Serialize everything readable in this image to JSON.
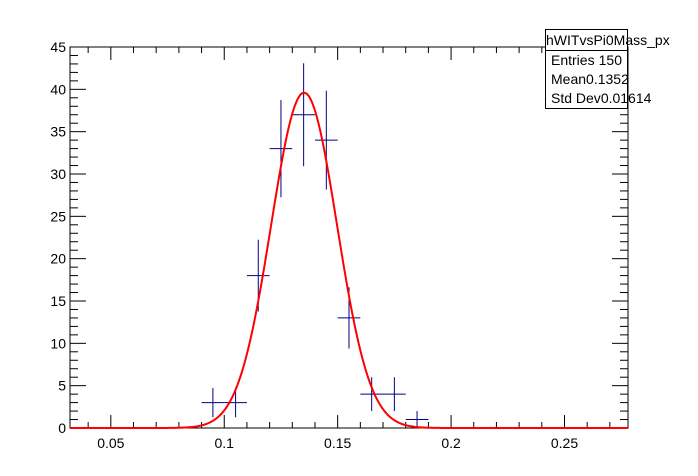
{
  "colors": {
    "data_points": "#000080",
    "fit_curve": "#ff0000",
    "axes": "#000000",
    "background": "#ffffff"
  },
  "stats": {
    "title": "hWITvsPi0Mass_px",
    "rows": [
      {
        "label": "Entries",
        "value": "150"
      },
      {
        "label": "Mean",
        "value": "0.1352"
      },
      {
        "label": "Std Dev",
        "value": "0.01614"
      }
    ]
  },
  "chart_data": {
    "type": "scatter",
    "title": "",
    "xlabel": "",
    "ylabel": "",
    "xlim": [
      0.032,
      0.278
    ],
    "ylim": [
      0,
      45
    ],
    "x_tick_labels": [
      "0.05",
      "0.1",
      "0.15",
      "0.2",
      "0.25"
    ],
    "y_tick_labels": [
      "0",
      "5",
      "10",
      "15",
      "20",
      "25",
      "30",
      "35",
      "40",
      "45"
    ],
    "bin_width": 0.01,
    "histogram": {
      "x": [
        0.095,
        0.105,
        0.115,
        0.125,
        0.135,
        0.145,
        0.155,
        0.165,
        0.175,
        0.185
      ],
      "y": [
        3,
        3,
        18,
        33,
        37,
        34,
        13,
        4,
        4,
        1
      ]
    },
    "fit": {
      "function": "gaussian",
      "constant": 39.6,
      "mean": 0.1352,
      "sigma": 0.0145,
      "xrange": [
        0.032,
        0.278
      ]
    }
  }
}
